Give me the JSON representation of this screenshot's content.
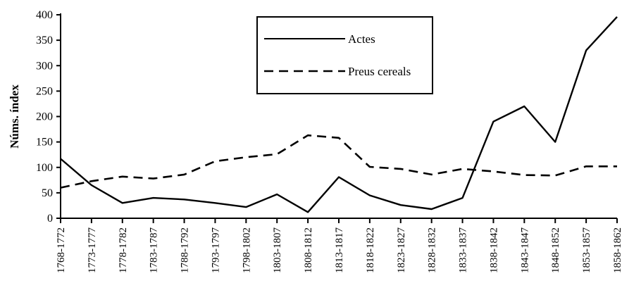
{
  "chart_data": {
    "type": "line",
    "title": "",
    "xlabel": "",
    "ylabel": "Núms. índex",
    "ylim": [
      0,
      400
    ],
    "yticks": [
      0,
      50,
      100,
      150,
      200,
      250,
      300,
      350,
      400
    ],
    "grid": false,
    "legend": "top-center",
    "categories": [
      "1768-1772",
      "1773-1777",
      "1778-1782",
      "1783-1787",
      "1788-1792",
      "1793-1797",
      "1798-1802",
      "1803-1807",
      "1808-1812",
      "1813-1817",
      "1818-1822",
      "1823-1827",
      "1828-1832",
      "1833-1837",
      "1838-1842",
      "1843-1847",
      "1848-1852",
      "1853-1857",
      "1858-1862"
    ],
    "series": [
      {
        "name": "Actes",
        "style": "solid",
        "color": "#000000",
        "values": [
          117,
          65,
          30,
          40,
          37,
          30,
          22,
          47,
          12,
          81,
          45,
          26,
          18,
          40,
          190,
          220,
          150,
          330,
          396
        ]
      },
      {
        "name": "Preus cereals",
        "style": "dashed",
        "color": "#000000",
        "values": [
          60,
          73,
          82,
          78,
          86,
          112,
          120,
          126,
          163,
          158,
          101,
          97,
          86,
          97,
          92,
          85,
          84,
          102,
          102
        ]
      }
    ]
  }
}
